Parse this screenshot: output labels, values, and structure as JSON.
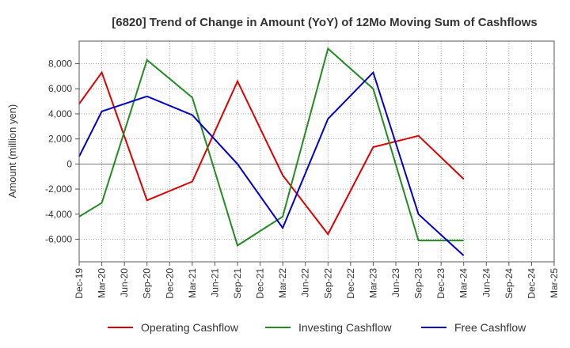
{
  "chart_data": {
    "type": "line",
    "title": "[6820]  Trend of Change in Amount (YoY) of 12Mo Moving Sum of Cashflows",
    "xlabel": "",
    "ylabel": "Amount (million yen)",
    "ylim": [
      -7800,
      9800
    ],
    "yticks": [
      8000,
      6000,
      4000,
      2000,
      0,
      -2000,
      -4000,
      -6000
    ],
    "ytick_labels": [
      "8,000",
      "6,000",
      "4,000",
      "2,000",
      "0",
      "-2,000",
      "-4,000",
      "-6,000"
    ],
    "categories": [
      "Dec-19",
      "Mar-20",
      "Jun-20",
      "Sep-20",
      "Dec-20",
      "Mar-21",
      "Jun-21",
      "Sep-21",
      "Dec-21",
      "Mar-22",
      "Jun-22",
      "Sep-22",
      "Dec-22",
      "Mar-23",
      "Jun-23",
      "Sep-23",
      "Dec-23",
      "Mar-24",
      "Jun-24",
      "Sep-24",
      "Dec-24",
      "Mar-25"
    ],
    "grid": true,
    "legend_position": "bottom",
    "series": [
      {
        "name": "Operating Cashflow",
        "color": "#dd0000",
        "points": [
          {
            "x": "Dec-19",
            "y": 4800
          },
          {
            "x": "Mar-20",
            "y": 7300
          },
          {
            "x": "Sep-20",
            "y": -2900
          },
          {
            "x": "Mar-21",
            "y": -1400
          },
          {
            "x": "Sep-21",
            "y": 6600
          },
          {
            "x": "Mar-22",
            "y": -900
          },
          {
            "x": "Sep-22",
            "y": -5600
          },
          {
            "x": "Mar-23",
            "y": 1350
          },
          {
            "x": "Sep-23",
            "y": 2250
          },
          {
            "x": "Mar-24",
            "y": -1200
          }
        ]
      },
      {
        "name": "Investing Cashflow",
        "color": "#228b22",
        "points": [
          {
            "x": "Dec-19",
            "y": -4200
          },
          {
            "x": "Mar-20",
            "y": -3100
          },
          {
            "x": "Sep-20",
            "y": 8300
          },
          {
            "x": "Mar-21",
            "y": 5300
          },
          {
            "x": "Sep-21",
            "y": -6500
          },
          {
            "x": "Mar-22",
            "y": -4200
          },
          {
            "x": "Sep-22",
            "y": 9200
          },
          {
            "x": "Mar-23",
            "y": 6000
          },
          {
            "x": "Sep-23",
            "y": -6100
          },
          {
            "x": "Mar-24",
            "y": -6100
          }
        ]
      },
      {
        "name": "Free Cashflow",
        "color": "#0000cc",
        "points": [
          {
            "x": "Dec-19",
            "y": 600
          },
          {
            "x": "Mar-20",
            "y": 4200
          },
          {
            "x": "Sep-20",
            "y": 5400
          },
          {
            "x": "Mar-21",
            "y": 3900
          },
          {
            "x": "Sep-21",
            "y": 0
          },
          {
            "x": "Mar-22",
            "y": -5100
          },
          {
            "x": "Sep-22",
            "y": 3600
          },
          {
            "x": "Mar-23",
            "y": 7300
          },
          {
            "x": "Sep-23",
            "y": -4000
          },
          {
            "x": "Mar-24",
            "y": -7300
          }
        ]
      }
    ]
  }
}
